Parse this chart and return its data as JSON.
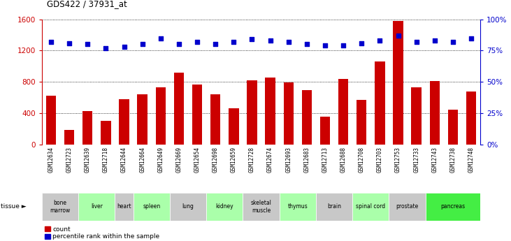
{
  "title": "GDS422 / 37931_at",
  "gsm_labels": [
    "GSM12634",
    "GSM12723",
    "GSM12639",
    "GSM12718",
    "GSM12644",
    "GSM12664",
    "GSM12649",
    "GSM12669",
    "GSM12654",
    "GSM12698",
    "GSM12659",
    "GSM12728",
    "GSM12674",
    "GSM12693",
    "GSM12683",
    "GSM12713",
    "GSM12688",
    "GSM12708",
    "GSM12703",
    "GSM12753",
    "GSM12733",
    "GSM12743",
    "GSM12738",
    "GSM12748"
  ],
  "counts": [
    620,
    190,
    430,
    300,
    580,
    640,
    730,
    920,
    770,
    640,
    460,
    820,
    860,
    790,
    700,
    360,
    840,
    570,
    1060,
    1580,
    730,
    810,
    450,
    680
  ],
  "percentiles": [
    82,
    81,
    80,
    77,
    78,
    80,
    85,
    80,
    82,
    80,
    82,
    84,
    83,
    82,
    80,
    79,
    79,
    81,
    83,
    87,
    82,
    83,
    82,
    85
  ],
  "tissues": [
    {
      "label": "bone\nmarrow",
      "start": 0,
      "end": 2,
      "color": "#c8c8c8"
    },
    {
      "label": "liver",
      "start": 2,
      "end": 4,
      "color": "#aaffaa"
    },
    {
      "label": "heart",
      "start": 4,
      "end": 5,
      "color": "#c8c8c8"
    },
    {
      "label": "spleen",
      "start": 5,
      "end": 7,
      "color": "#aaffaa"
    },
    {
      "label": "lung",
      "start": 7,
      "end": 9,
      "color": "#c8c8c8"
    },
    {
      "label": "kidney",
      "start": 9,
      "end": 11,
      "color": "#aaffaa"
    },
    {
      "label": "skeletal\nmuscle",
      "start": 11,
      "end": 13,
      "color": "#c8c8c8"
    },
    {
      "label": "thymus",
      "start": 13,
      "end": 15,
      "color": "#aaffaa"
    },
    {
      "label": "brain",
      "start": 15,
      "end": 17,
      "color": "#c8c8c8"
    },
    {
      "label": "spinal cord",
      "start": 17,
      "end": 19,
      "color": "#aaffaa"
    },
    {
      "label": "prostate",
      "start": 19,
      "end": 21,
      "color": "#c8c8c8"
    },
    {
      "label": "pancreas",
      "start": 21,
      "end": 24,
      "color": "#44ee44"
    }
  ],
  "bar_color": "#cc0000",
  "dot_color": "#0000cc",
  "ylim_left": [
    0,
    1600
  ],
  "ylim_right": [
    0,
    100
  ],
  "yticks_left": [
    0,
    400,
    800,
    1200,
    1600
  ],
  "yticks_right": [
    0,
    25,
    50,
    75,
    100
  ],
  "xtick_bg": "#d0d0d0",
  "plot_bg": "#ffffff",
  "tissue_label_color": "black"
}
